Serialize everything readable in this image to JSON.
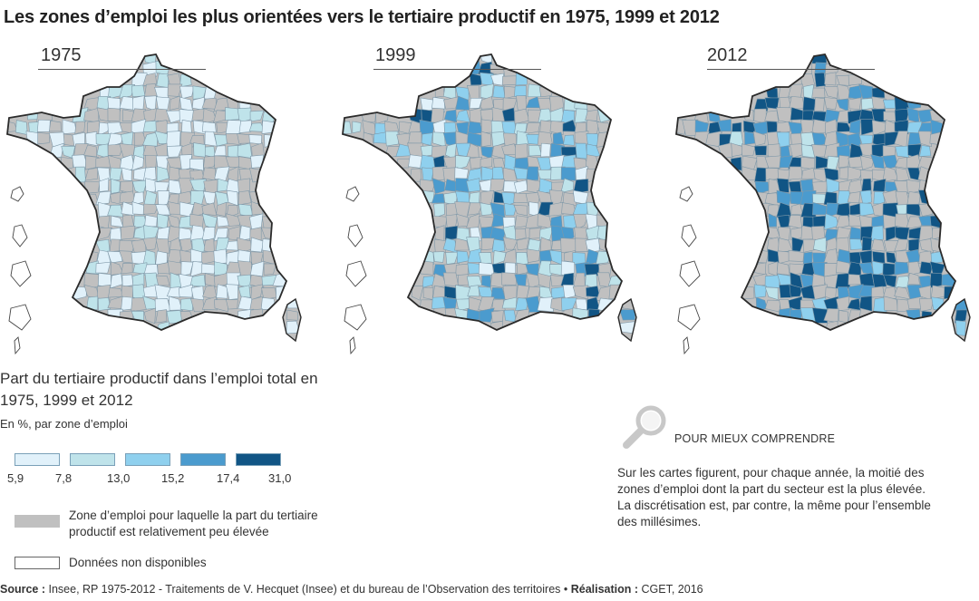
{
  "title": "Les zones d’emploi les plus orientées vers le tertiaire productif en 1975, 1999 et 2012",
  "maps": [
    {
      "year": "1975"
    },
    {
      "year": "1999"
    },
    {
      "year": "2012"
    }
  ],
  "legend": {
    "title": "Part du tertiaire productif dans l’emploi total en 1975, 1999 et 2012",
    "unit": "En %, par zone d’emploi",
    "classes": [
      {
        "color": "#e1f1fa"
      },
      {
        "color": "#bfe3ea"
      },
      {
        "color": "#8fd0ee"
      },
      {
        "color": "#4b9bce"
      },
      {
        "color": "#115585"
      }
    ],
    "breaks": [
      "5,9",
      "7,8",
      "13,0",
      "15,2",
      "17,4",
      "31,0"
    ],
    "low_share_label": "Zone d’emploi pour laquelle la part du tertiaire productif est relativement peu élevée",
    "low_share_color": "#c0c0c0",
    "no_data_label": "Données non disponibles"
  },
  "note": {
    "heading": "POUR MIEUX COMPRENDRE",
    "icon": "magnifier-icon",
    "text": "Sur les cartes figurent, pour chaque année, la moitié des zones d’emploi dont la part du secteur est la plus élevée. La discrétisation est, par contre, la même pour l’ensemble des millésimes."
  },
  "source": {
    "label": "Source :",
    "text": " Insee, RP 1975-2012 - Traitements de V. Hecquet (Insee) et du bureau de l’Observation des territoires • ",
    "credit_label": "Réalisation :",
    "credit_text": " CGET, 2016"
  }
}
